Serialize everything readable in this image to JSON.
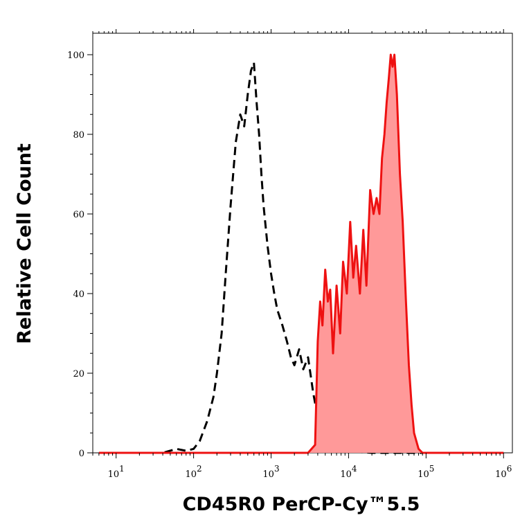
{
  "chart_data": {
    "type": "area",
    "xlabel": "CD45R0 PerCP-Cy™5.5",
    "ylabel": "Relative Cell Count",
    "x_scale": "log",
    "xlim": [
      5,
      1300000
    ],
    "ylim": [
      0,
      100
    ],
    "x_ticks": [
      {
        "value": 10,
        "base": "10",
        "exp": "1"
      },
      {
        "value": 100,
        "base": "10",
        "exp": "2"
      },
      {
        "value": 1000,
        "base": "10",
        "exp": "3"
      },
      {
        "value": 10000,
        "base": "10",
        "exp": "4"
      },
      {
        "value": 100000,
        "base": "10",
        "exp": "5"
      },
      {
        "value": 1000000,
        "base": "10",
        "exp": "6"
      }
    ],
    "y_ticks": [
      0,
      20,
      40,
      60,
      80,
      100
    ],
    "grid": false,
    "legend": "none",
    "series": [
      {
        "style": "dashed",
        "color": "#000000",
        "fill": "none",
        "x": [
          6,
          20,
          40,
          60,
          80,
          100,
          120,
          150,
          180,
          200,
          230,
          260,
          300,
          350,
          400,
          450,
          500,
          550,
          600,
          650,
          700,
          750,
          800,
          900,
          1000,
          1100,
          1200,
          1400,
          1600,
          1800,
          2000,
          2300,
          2600,
          3000,
          3500,
          4000,
          5000,
          8000,
          20000,
          50000,
          100000,
          1000000
        ],
        "y": [
          0,
          0,
          0,
          1,
          0.5,
          1,
          3,
          8,
          14,
          20,
          30,
          45,
          62,
          78,
          85,
          82,
          90,
          96,
          98,
          88,
          80,
          70,
          62,
          52,
          45,
          40,
          36,
          32,
          28,
          24,
          22,
          26,
          21,
          24,
          15,
          9,
          3,
          0.5,
          0,
          0,
          0,
          0
        ]
      },
      {
        "style": "solid",
        "color": "#ee1111",
        "fill": "#ff9999",
        "x": [
          6,
          100,
          1000,
          3000,
          3700,
          4000,
          4300,
          4600,
          5000,
          5400,
          5800,
          6300,
          7000,
          7800,
          8500,
          9500,
          10500,
          11500,
          12500,
          14000,
          15500,
          17000,
          19000,
          21000,
          23000,
          25000,
          27000,
          29000,
          31000,
          33000,
          35000,
          37000,
          39000,
          42000,
          46000,
          50000,
          55000,
          60000,
          65000,
          70000,
          80000,
          90000,
          100000,
          1000000
        ],
        "y": [
          0,
          0,
          0,
          0,
          2,
          28,
          38,
          32,
          46,
          38,
          41,
          25,
          42,
          30,
          48,
          40,
          58,
          44,
          52,
          40,
          56,
          42,
          66,
          60,
          64,
          60,
          74,
          80,
          88,
          94,
          100,
          97,
          100,
          90,
          70,
          58,
          38,
          22,
          12,
          5,
          1,
          0,
          0,
          0
        ]
      }
    ]
  }
}
